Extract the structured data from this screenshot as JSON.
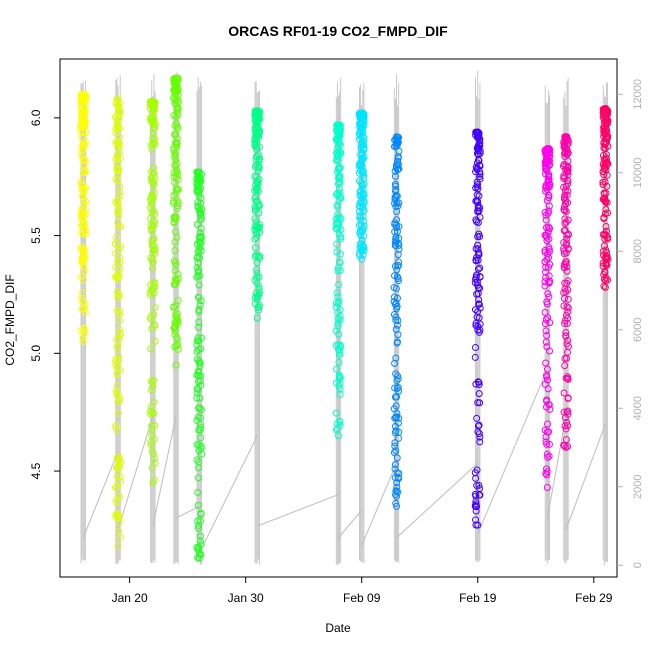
{
  "chart_data": {
    "type": "scatter",
    "title": "ORCAS RF01-19 CO2_FMPD_DIF",
    "xlabel": "Date",
    "ylabel": "CO2_FMPD_DIF",
    "x_axis": {
      "type": "date",
      "range": [
        "2016-01-14",
        "2016-03-02"
      ],
      "ticks": [
        {
          "date": "2016-01-20",
          "label": "Jan 20"
        },
        {
          "date": "2016-01-30",
          "label": "Jan 30"
        },
        {
          "date": "2016-02-09",
          "label": "Feb 09"
        },
        {
          "date": "2016-02-19",
          "label": "Feb 19"
        },
        {
          "date": "2016-02-29",
          "label": "Feb 29"
        }
      ]
    },
    "y_axis_left": {
      "range": [
        4.05,
        6.25
      ],
      "ticks": [
        4.5,
        5.0,
        5.5,
        6.0
      ],
      "tick_labels": [
        "4.5",
        "5.0",
        "5.5",
        "6.0"
      ]
    },
    "y_axis_right": {
      "color": "#b0b0b0",
      "range": [
        -300,
        12900
      ],
      "ticks": [
        0,
        2000,
        4000,
        6000,
        8000,
        10000,
        12000
      ],
      "tick_labels": [
        "0",
        "2000",
        "4000",
        "6000",
        "8000",
        "10000",
        "12000"
      ]
    },
    "grid": false,
    "legend": "none",
    "altitude_trace_color": "#bdbdbd",
    "flights": [
      {
        "date": "2016-01-16.0",
        "color": "#ffff00",
        "y_range": [
          5.05,
          6.1
        ],
        "alt_start": 2700,
        "alt_end": 700
      },
      {
        "date": "2016-01-19.0",
        "color": "#ddff00",
        "y_range": [
          4.18,
          6.08
        ],
        "alt_start": 2900,
        "alt_end": 900
      },
      {
        "date": "2016-01-22.0",
        "color": "#a4ff00",
        "y_range": [
          4.45,
          6.07
        ],
        "alt_start": 3800,
        "alt_end": 1000
      },
      {
        "date": "2016-01-24.0",
        "color": "#66ff00",
        "y_range": [
          4.95,
          6.17
        ],
        "alt_start": 3800,
        "alt_end": 1200
      },
      {
        "date": "2016-01-26.0",
        "color": "#22ff22",
        "y_range": [
          4.13,
          5.77
        ],
        "alt_start": 1500,
        "alt_end": 300
      },
      {
        "date": "2016-01-31.0",
        "color": "#00ff88",
        "y_range": [
          5.15,
          6.03
        ],
        "alt_start": 3300,
        "alt_end": 1000
      },
      {
        "date": "2016-02-07.0",
        "color": "#00ffcc",
        "y_range": [
          4.65,
          5.97
        ],
        "alt_start": 1800,
        "alt_end": 700
      },
      {
        "date": "2016-02-09.0",
        "color": "#00e5ff",
        "y_range": [
          5.4,
          6.02
        ],
        "alt_start": 1400,
        "alt_end": 500
      },
      {
        "date": "2016-02-12.0",
        "color": "#0088ff",
        "y_range": [
          4.35,
          5.92
        ],
        "alt_start": 2600,
        "alt_end": 700
      },
      {
        "date": "2016-02-19.0",
        "color": "#4400ff",
        "y_range": [
          4.27,
          5.94
        ],
        "alt_start": 2600,
        "alt_end": 800
      },
      {
        "date": "2016-02-25.0",
        "color": "#ff00ee",
        "y_range": [
          4.43,
          5.87
        ],
        "alt_start": 5000,
        "alt_end": 1200
      },
      {
        "date": "2016-02-26.6",
        "color": "#ff00aa",
        "y_range": [
          4.6,
          5.92
        ],
        "alt_start": 3800,
        "alt_end": 900
      },
      {
        "date": "2016-03-01.0",
        "color": "#ff0066",
        "y_range": [
          5.28,
          6.04
        ],
        "alt_start": 3600,
        "alt_end": 1000
      }
    ]
  }
}
